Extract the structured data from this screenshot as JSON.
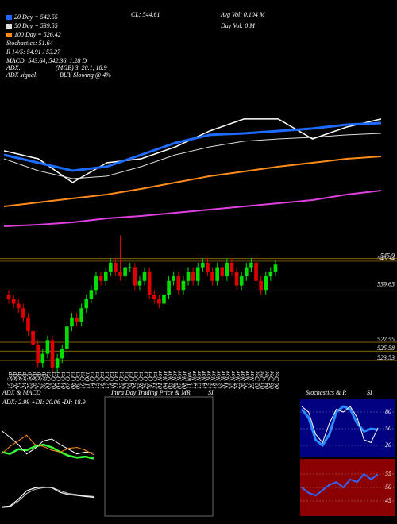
{
  "chart_data": [
    {
      "type": "candlestick",
      "annotations": [
        "Stochastics: 51.64",
        "R 14/5: 54.91 / 53.27",
        "MACD: 543.64, 542.36, 1.28 D",
        "ADX:",
        "(MGB) 3, 20.1, 18.9",
        "ADX signal:",
        "BUY Slowing @ 4%",
        "CL: 544.61",
        "Avg Vol: 0.104 M",
        "Day Vol: 0 M"
      ],
      "categories": [
        "19 Sep",
        "20 Sep",
        "23 Sep",
        "24 Sep",
        "25 Sep",
        "26 Sep",
        "27 Sep",
        "30 Sep",
        "01 Oct",
        "02 Oct",
        "03 Oct",
        "04 Oct",
        "07 Oct",
        "08 Oct",
        "09 Oct",
        "10 Oct",
        "11 Oct",
        "14 Oct",
        "15 Oct",
        "16 Oct",
        "17 Oct",
        "18 Oct",
        "21 Oct",
        "22 Oct",
        "23 Oct",
        "24 Oct",
        "25 Oct",
        "28 Oct",
        "29 Oct",
        "30 Oct",
        "31 Oct",
        "01 Nov",
        "04 Nov",
        "05 Nov",
        "06 Nov",
        "07 Nov",
        "08 Nov",
        "11 Nov",
        "12 Nov",
        "13 Nov",
        "14 Nov",
        "15 Nov",
        "18 Nov",
        "19 Nov",
        "20 Nov",
        "21 Nov",
        "22 Nov",
        "25 Nov",
        "26 Nov",
        "27 Nov",
        "29 Nov",
        "02 Dec",
        "03 Dec",
        "04 Dec",
        "05 Dec",
        "06 Dec"
      ],
      "open": [
        538,
        537,
        536,
        535,
        533,
        530,
        527,
        523,
        525,
        528,
        522,
        524,
        526,
        531,
        533,
        532,
        535,
        537,
        539,
        542,
        541,
        543,
        545,
        543,
        542,
        544,
        544,
        540,
        541,
        543,
        538,
        537,
        536,
        538,
        541,
        542,
        539,
        541,
        543,
        541,
        544,
        545,
        543,
        541,
        544,
        542,
        545,
        543,
        540,
        542,
        544,
        545,
        541,
        539,
        542,
        543
      ],
      "high": [
        539,
        538,
        537,
        536,
        534,
        531,
        528,
        526,
        529,
        529,
        525,
        527,
        532,
        534,
        534,
        536,
        538,
        540,
        543,
        543,
        544,
        546,
        546,
        551,
        545,
        545,
        545,
        542,
        544,
        544,
        539,
        538,
        539,
        542,
        543,
        543,
        542,
        544,
        544,
        545,
        546,
        546,
        544,
        545,
        545,
        546,
        546,
        544,
        543,
        545,
        546,
        546,
        542,
        543,
        544,
        545.6
      ],
      "low": [
        536,
        535,
        534,
        532,
        529,
        526,
        522,
        522,
        524,
        521,
        521,
        523,
        525,
        530,
        531,
        531,
        534,
        536,
        538,
        540,
        540,
        542,
        542,
        541,
        541,
        543,
        539,
        539,
        540,
        537,
        536,
        535,
        535,
        537,
        540,
        538,
        538,
        540,
        540,
        540,
        543,
        542,
        540,
        540,
        541,
        541,
        542,
        539,
        539,
        541,
        543,
        540,
        538,
        538,
        541,
        542
      ],
      "close": [
        537,
        536,
        535,
        533,
        530,
        527,
        523,
        525,
        528,
        522,
        524,
        526,
        531,
        533,
        532,
        535,
        537,
        539,
        542,
        541,
        543,
        545,
        543,
        542,
        544,
        544,
        540,
        541,
        543,
        538,
        537,
        536,
        538,
        541,
        542,
        539,
        541,
        543,
        541,
        544,
        545,
        543,
        541,
        544,
        542,
        545,
        543,
        540,
        542,
        544,
        545,
        541,
        539,
        542,
        543,
        544.61
      ],
      "up_color": "#00e000",
      "down_color": "#e00000",
      "grid_color": "#b8860b",
      "ylim": [
        519,
        553
      ],
      "yticks": [
        545.9,
        545.34,
        539.63,
        527.55,
        525.58,
        523.53
      ]
    },
    {
      "type": "line",
      "x": [
        0,
        5,
        10,
        15,
        20,
        25,
        30,
        35,
        40,
        45,
        50,
        55
      ],
      "xlim": [
        0,
        55
      ],
      "ylim": [
        0,
        100
      ],
      "series": [
        {
          "color": "#ffffff",
          "width": 1.5,
          "values": [
            68.8,
            62.5,
            43.8,
            59.4,
            62.5,
            71.9,
            84.4,
            93.8,
            93.8,
            78.1,
            87.5,
            93.8
          ]
        },
        {
          "name": "20 Day = 542.55",
          "color": "#1e6cff",
          "width": 3,
          "values": [
            65.6,
            59.4,
            53.1,
            56.3,
            65.6,
            75,
            81.3,
            82.5,
            84.4,
            86.3,
            89.4,
            90.6
          ]
        },
        {
          "name": "50 Day = 539.55",
          "color": "#dddddd",
          "width": 1,
          "values": [
            62.5,
            53.1,
            46.9,
            48.8,
            56.3,
            65.6,
            71.9,
            76.3,
            78.1,
            79.4,
            81.3,
            82.5
          ]
        },
        {
          "name": "100 Day = 526.42",
          "color": "#ff8c1a",
          "width": 2,
          "values": [
            25,
            28.1,
            31.3,
            34.4,
            38.8,
            43.8,
            48.8,
            52.5,
            56.3,
            59.4,
            62.5,
            64.4
          ]
        },
        {
          "color": "#e040e0",
          "width": 2,
          "values": [
            9.4,
            10.6,
            12.5,
            15.6,
            17.5,
            20,
            22.5,
            25,
            27.5,
            30,
            34.4,
            37.5
          ]
        }
      ]
    },
    {
      "type": "line",
      "title": "ADX & MACD",
      "annotation": "ADX: 2.99  +DI: 20.06  -DI: 18.9",
      "ylim": [
        0,
        60
      ],
      "series": [
        {
          "color": "#33ff33",
          "width": 2.5,
          "values": [
            22,
            20,
            25,
            24,
            28,
            30,
            27,
            22,
            18,
            16,
            17,
            15
          ]
        },
        {
          "color": "#ffffff",
          "width": 1,
          "values": [
            45,
            38,
            30,
            20,
            26,
            34,
            36,
            30,
            25,
            20,
            22,
            21
          ]
        },
        {
          "color": "#ff8c1a",
          "width": 1,
          "values": [
            20,
            28,
            34,
            40,
            30,
            28,
            24,
            22,
            26,
            27,
            24,
            19
          ]
        }
      ]
    },
    {
      "type": "line",
      "ylim": [
        0,
        100
      ],
      "series": [
        {
          "color": "#ffffff",
          "width": 1.2,
          "values": [
            20,
            22,
            40,
            62,
            70,
            72,
            70,
            58,
            52,
            50,
            47,
            45
          ]
        },
        {
          "color": "#cccccc",
          "width": 1,
          "values": [
            18,
            20,
            35,
            55,
            66,
            70,
            71,
            62,
            55,
            52,
            49,
            47
          ]
        }
      ]
    },
    {
      "type": "line",
      "title": "Intra Day Trading Price & MR",
      "subtitle": "SI"
    },
    {
      "type": "line",
      "title": "Stochastics & R",
      "subtitle": "SI",
      "ylim": [
        0,
        100
      ],
      "yticks": [
        20,
        50,
        80
      ],
      "background": "#000080",
      "series": [
        {
          "color": "#2a8cff",
          "width": 3,
          "values": [
            85,
            70,
            30,
            20,
            40,
            80,
            90,
            85,
            60,
            45,
            50,
            48
          ]
        },
        {
          "color": "#ffffff",
          "width": 1,
          "values": [
            90,
            80,
            40,
            25,
            60,
            85,
            80,
            90,
            70,
            30,
            25,
            51.64
          ]
        }
      ]
    },
    {
      "type": "line",
      "ylim": [
        40,
        60
      ],
      "yticks": [
        45,
        50,
        55
      ],
      "background": "#8b0000",
      "series": [
        {
          "color": "#3366ff",
          "width": 2,
          "values": [
            50,
            48,
            47,
            49,
            51,
            52,
            50,
            53,
            52,
            55,
            53,
            54.91
          ]
        }
      ]
    }
  ]
}
